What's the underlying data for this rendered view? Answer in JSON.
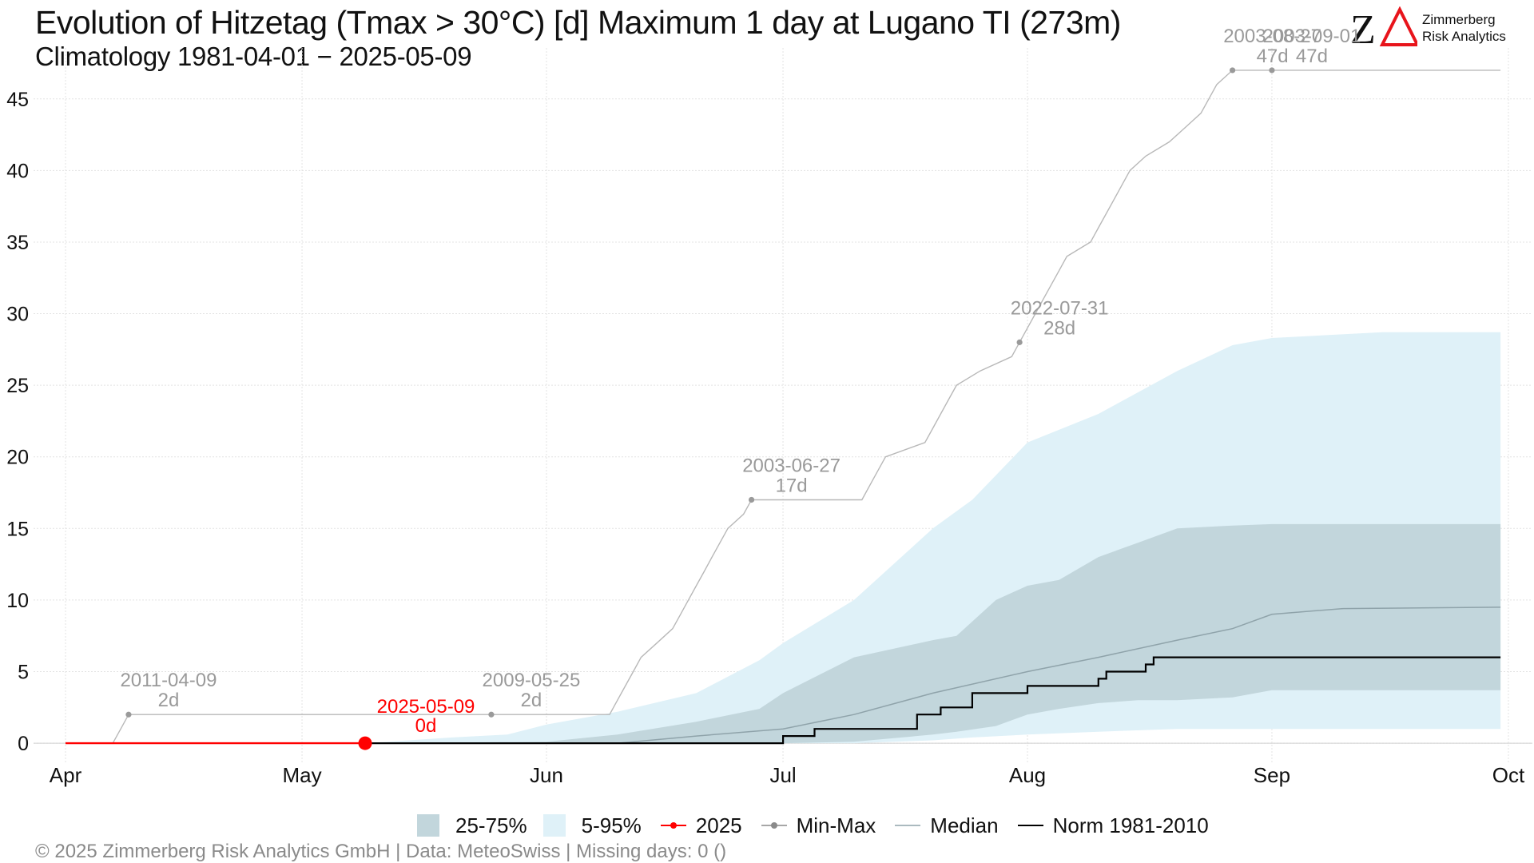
{
  "title": "Evolution of Hitzetag (Tmax > 30°C) [d] Maximum 1 day at Lugano  TI (273m)",
  "subtitle": "Climatology 1981-04-01 − 2025-05-09",
  "logo": {
    "mark": "ZΔ",
    "line1": "Zimmerberg",
    "line2": "Risk Analytics",
    "accent_color": "#e8141b"
  },
  "footer": "©  2025 Zimmerberg Risk Analytics GmbH | Data: MeteoSwiss | Missing days: 0 ()",
  "legend": {
    "band_25_75": "25-75%",
    "band_5_95": "5-95%",
    "current": "2025",
    "minmax": "Min-Max",
    "median": "Median",
    "norm": "Norm 1981-2010"
  },
  "colors": {
    "band_5_95": "#dff1f8",
    "band_25_75": "#c2d6dc",
    "current": "#ff0000",
    "minmax": "#b8b8b8",
    "minmax_point": "#9a9a9a",
    "median": "#8fa3aa",
    "norm": "#000000",
    "grid": "#e3e3e3",
    "annotation": "#9a9a9a"
  },
  "chart_data": {
    "type": "area",
    "x_axis": {
      "type": "date",
      "range": [
        "2025-04-01",
        "2025-10-01"
      ],
      "ticks": [
        {
          "date": "2025-04-01",
          "label": "Apr"
        },
        {
          "date": "2025-05-01",
          "label": "May"
        },
        {
          "date": "2025-06-01",
          "label": "Jun"
        },
        {
          "date": "2025-07-01",
          "label": "Jul"
        },
        {
          "date": "2025-08-01",
          "label": "Aug"
        },
        {
          "date": "2025-09-01",
          "label": "Sep"
        },
        {
          "date": "2025-10-01",
          "label": "Oct"
        }
      ]
    },
    "y_axis": {
      "range": [
        -1,
        48
      ],
      "ticks": [
        0,
        5,
        10,
        15,
        20,
        25,
        30,
        35,
        40,
        45
      ]
    },
    "grid": true,
    "legend_position": "bottom",
    "band_5_95": [
      [
        "2025-05-09",
        0,
        0
      ],
      [
        "2025-05-20",
        0,
        0.4
      ],
      [
        "2025-05-27",
        0,
        0.6
      ],
      [
        "2025-06-01",
        0,
        1.3
      ],
      [
        "2025-06-10",
        0,
        2.2
      ],
      [
        "2025-06-20",
        0,
        3.5
      ],
      [
        "2025-06-28",
        0,
        5.8
      ],
      [
        "2025-07-01",
        0,
        7.0
      ],
      [
        "2025-07-10",
        0,
        10.0
      ],
      [
        "2025-07-20",
        0.2,
        15.0
      ],
      [
        "2025-07-25",
        0.4,
        17.0
      ],
      [
        "2025-08-01",
        0.6,
        21.0
      ],
      [
        "2025-08-10",
        0.8,
        23.0
      ],
      [
        "2025-08-20",
        1.0,
        26.0
      ],
      [
        "2025-08-27",
        1.0,
        27.8
      ],
      [
        "2025-09-01",
        1.0,
        28.3
      ],
      [
        "2025-09-15",
        1.0,
        28.7
      ],
      [
        "2025-09-30",
        1.0,
        28.7
      ]
    ],
    "band_25_75": [
      [
        "2025-05-09",
        0,
        0
      ],
      [
        "2025-06-01",
        0,
        0.1
      ],
      [
        "2025-06-10",
        0,
        0.6
      ],
      [
        "2025-06-20",
        0,
        1.5
      ],
      [
        "2025-06-28",
        0,
        2.4
      ],
      [
        "2025-07-01",
        0,
        3.5
      ],
      [
        "2025-07-10",
        0.1,
        6.0
      ],
      [
        "2025-07-20",
        0.6,
        7.2
      ],
      [
        "2025-07-23",
        0.8,
        7.5
      ],
      [
        "2025-07-28",
        1.2,
        10.0
      ],
      [
        "2025-08-01",
        2.0,
        11.0
      ],
      [
        "2025-08-05",
        2.4,
        11.4
      ],
      [
        "2025-08-10",
        2.8,
        13.0
      ],
      [
        "2025-08-15",
        3.0,
        14.0
      ],
      [
        "2025-08-20",
        3.0,
        15.0
      ],
      [
        "2025-08-27",
        3.2,
        15.2
      ],
      [
        "2025-09-01",
        3.7,
        15.3
      ],
      [
        "2025-09-30",
        3.7,
        15.3
      ]
    ],
    "median": [
      [
        "2025-05-09",
        0
      ],
      [
        "2025-06-10",
        0
      ],
      [
        "2025-06-20",
        0.5
      ],
      [
        "2025-07-01",
        1.0
      ],
      [
        "2025-07-10",
        2.0
      ],
      [
        "2025-07-20",
        3.5
      ],
      [
        "2025-08-01",
        5.0
      ],
      [
        "2025-08-10",
        6.0
      ],
      [
        "2025-08-20",
        7.2
      ],
      [
        "2025-08-27",
        8.0
      ],
      [
        "2025-09-01",
        9.0
      ],
      [
        "2025-09-10",
        9.4
      ],
      [
        "2025-09-30",
        9.5
      ]
    ],
    "norm": [
      [
        "2025-05-09",
        0
      ],
      [
        "2025-07-01",
        0
      ],
      [
        "2025-07-01",
        0.5
      ],
      [
        "2025-07-05",
        0.5
      ],
      [
        "2025-07-05",
        1.0
      ],
      [
        "2025-07-18",
        1.0
      ],
      [
        "2025-07-18",
        2.0
      ],
      [
        "2025-07-21",
        2.0
      ],
      [
        "2025-07-21",
        2.5
      ],
      [
        "2025-07-25",
        2.5
      ],
      [
        "2025-07-25",
        3.5
      ],
      [
        "2025-08-01",
        3.5
      ],
      [
        "2025-08-01",
        4.0
      ],
      [
        "2025-08-10",
        4.0
      ],
      [
        "2025-08-10",
        4.5
      ],
      [
        "2025-08-11",
        4.5
      ],
      [
        "2025-08-11",
        5.0
      ],
      [
        "2025-08-16",
        5.0
      ],
      [
        "2025-08-16",
        5.5
      ],
      [
        "2025-08-17",
        5.5
      ],
      [
        "2025-08-17",
        6.0
      ],
      [
        "2025-09-30",
        6.0
      ]
    ],
    "current": {
      "series": [
        [
          "2025-04-01",
          0
        ],
        [
          "2025-05-09",
          0
        ]
      ],
      "label_date": "2025-05-09",
      "label_value": "0d"
    },
    "minmax": [
      [
        "2025-04-01",
        0
      ],
      [
        "2025-04-07",
        0
      ],
      [
        "2025-04-08",
        1
      ],
      [
        "2025-04-09",
        2
      ],
      [
        "2025-06-09",
        2
      ],
      [
        "2025-06-10",
        3
      ],
      [
        "2025-06-11",
        4
      ],
      [
        "2025-06-12",
        5
      ],
      [
        "2025-06-13",
        6
      ],
      [
        "2025-06-15",
        7
      ],
      [
        "2025-06-17",
        8
      ],
      [
        "2025-06-18",
        9
      ],
      [
        "2025-06-19",
        10
      ],
      [
        "2025-06-20",
        11
      ],
      [
        "2025-06-21",
        12
      ],
      [
        "2025-06-22",
        13
      ],
      [
        "2025-06-23",
        14
      ],
      [
        "2025-06-24",
        15
      ],
      [
        "2025-06-26",
        16
      ],
      [
        "2025-06-27",
        17
      ],
      [
        "2025-07-11",
        17
      ],
      [
        "2025-07-12",
        18
      ],
      [
        "2025-07-13",
        19
      ],
      [
        "2025-07-14",
        20
      ],
      [
        "2025-07-19",
        21
      ],
      [
        "2025-07-20",
        22
      ],
      [
        "2025-07-21",
        23
      ],
      [
        "2025-07-22",
        24
      ],
      [
        "2025-07-23",
        25
      ],
      [
        "2025-07-26",
        26
      ],
      [
        "2025-07-30",
        27
      ],
      [
        "2025-07-31",
        28
      ],
      [
        "2025-08-01",
        29
      ],
      [
        "2025-08-02",
        30
      ],
      [
        "2025-08-03",
        31
      ],
      [
        "2025-08-04",
        32
      ],
      [
        "2025-08-05",
        33
      ],
      [
        "2025-08-06",
        34
      ],
      [
        "2025-08-09",
        35
      ],
      [
        "2025-08-10",
        36
      ],
      [
        "2025-08-11",
        37
      ],
      [
        "2025-08-12",
        38
      ],
      [
        "2025-08-13",
        39
      ],
      [
        "2025-08-14",
        40
      ],
      [
        "2025-08-16",
        41
      ],
      [
        "2025-08-19",
        42
      ],
      [
        "2025-08-21",
        43
      ],
      [
        "2025-08-23",
        44
      ],
      [
        "2025-08-24",
        45
      ],
      [
        "2025-08-25",
        46
      ],
      [
        "2025-08-27",
        47
      ],
      [
        "2025-09-30",
        47
      ]
    ],
    "annotations": [
      {
        "date": "2025-04-09",
        "value": 2,
        "date_label": "2011-04-09",
        "value_label": "2d"
      },
      {
        "date": "2025-05-25",
        "value": 2,
        "date_label": "2009-05-25",
        "value_label": "2d"
      },
      {
        "date": "2025-06-27",
        "value": 17,
        "date_label": "2003-06-27",
        "value_label": "17d"
      },
      {
        "date": "2025-07-31",
        "value": 28,
        "date_label": "2022-07-31",
        "value_label": "28d"
      },
      {
        "date": "2025-08-27",
        "value": 47,
        "date_label": "2003-08-27",
        "value_label": "47d"
      },
      {
        "date": "2025-09-01",
        "value": 47,
        "date_label": "2003-09-01",
        "value_label": "47d"
      }
    ]
  }
}
